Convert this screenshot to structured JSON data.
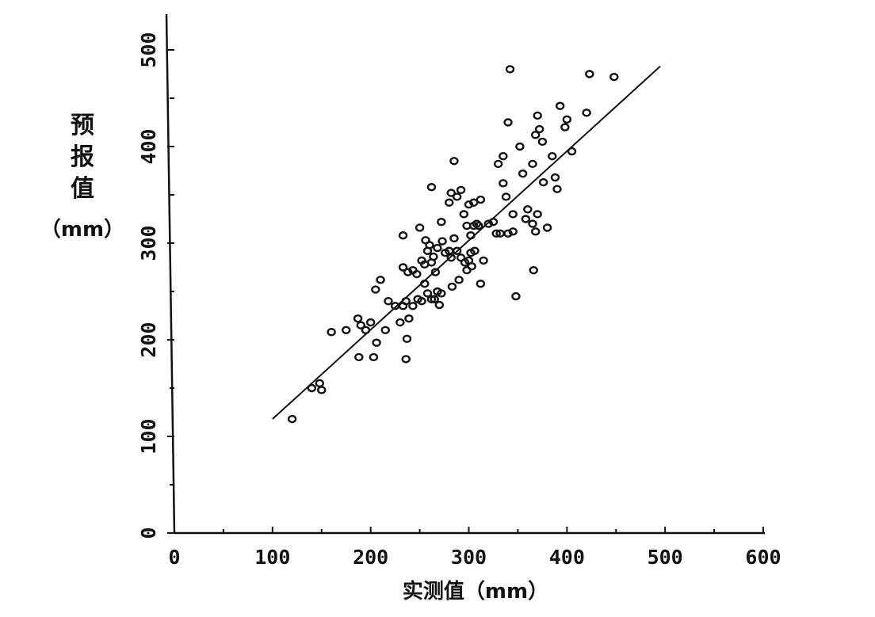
{
  "chart_data": {
    "type": "scatter",
    "xlabel": "实测值（mm）",
    "ylabel_chars": [
      "预",
      "报",
      "值"
    ],
    "ylabel_unit": "（mm）",
    "xlim": [
      0,
      600
    ],
    "ylim": [
      0,
      500
    ],
    "x_ticks": [
      0,
      100,
      200,
      300,
      400,
      500,
      600
    ],
    "x_tick_labels": [
      "0",
      "100",
      "200",
      "300",
      "400",
      "500",
      "600"
    ],
    "y_ticks": [
      0,
      100,
      200,
      300,
      400,
      500
    ],
    "y_tick_labels": [
      "0",
      "100",
      "200",
      "300",
      "400",
      "500"
    ],
    "grid": false,
    "fit_line": {
      "x": [
        100,
        495
      ],
      "y": [
        118,
        483
      ]
    },
    "points": [
      [
        120,
        118
      ],
      [
        140,
        150
      ],
      [
        148,
        155
      ],
      [
        150,
        148
      ],
      [
        160,
        208
      ],
      [
        175,
        210
      ],
      [
        187,
        222
      ],
      [
        190,
        215
      ],
      [
        195,
        210
      ],
      [
        200,
        218
      ],
      [
        188,
        182
      ],
      [
        203,
        182
      ],
      [
        206,
        197
      ],
      [
        210,
        262
      ],
      [
        205,
        252
      ],
      [
        215,
        210
      ],
      [
        218,
        240
      ],
      [
        225,
        235
      ],
      [
        230,
        218
      ],
      [
        233,
        235
      ],
      [
        236,
        240
      ],
      [
        237,
        201
      ],
      [
        236,
        180
      ],
      [
        239,
        222
      ],
      [
        243,
        235
      ],
      [
        248,
        242
      ],
      [
        233,
        308
      ],
      [
        233,
        275
      ],
      [
        238,
        270
      ],
      [
        243,
        272
      ],
      [
        247,
        268
      ],
      [
        250,
        316
      ],
      [
        252,
        282
      ],
      [
        255,
        278
      ],
      [
        258,
        292
      ],
      [
        256,
        303
      ],
      [
        260,
        298
      ],
      [
        262,
        280
      ],
      [
        264,
        286
      ],
      [
        266,
        270
      ],
      [
        252,
        240
      ],
      [
        255,
        258
      ],
      [
        258,
        248
      ],
      [
        262,
        242
      ],
      [
        265,
        242
      ],
      [
        268,
        250
      ],
      [
        270,
        236
      ],
      [
        272,
        248
      ],
      [
        268,
        295
      ],
      [
        273,
        302
      ],
      [
        276,
        290
      ],
      [
        280,
        292
      ],
      [
        282,
        285
      ],
      [
        285,
        305
      ],
      [
        288,
        292
      ],
      [
        262,
        358
      ],
      [
        272,
        322
      ],
      [
        280,
        342
      ],
      [
        282,
        352
      ],
      [
        285,
        385
      ],
      [
        288,
        348
      ],
      [
        292,
        355
      ],
      [
        295,
        330
      ],
      [
        283,
        255
      ],
      [
        290,
        262
      ],
      [
        292,
        285
      ],
      [
        296,
        280
      ],
      [
        298,
        272
      ],
      [
        300,
        282
      ],
      [
        303,
        276
      ],
      [
        298,
        318
      ],
      [
        302,
        308
      ],
      [
        305,
        318
      ],
      [
        308,
        320
      ],
      [
        310,
        318
      ],
      [
        312,
        345
      ],
      [
        300,
        340
      ],
      [
        305,
        342
      ],
      [
        302,
        290
      ],
      [
        306,
        292
      ],
      [
        315,
        282
      ],
      [
        312,
        258
      ],
      [
        320,
        320
      ],
      [
        325,
        322
      ],
      [
        328,
        310
      ],
      [
        332,
        310
      ],
      [
        335,
        362
      ],
      [
        338,
        348
      ],
      [
        340,
        310
      ],
      [
        345,
        312
      ],
      [
        330,
        382
      ],
      [
        335,
        390
      ],
      [
        340,
        425
      ],
      [
        342,
        480
      ],
      [
        345,
        330
      ],
      [
        348,
        245
      ],
      [
        352,
        400
      ],
      [
        355,
        372
      ],
      [
        358,
        325
      ],
      [
        360,
        335
      ],
      [
        365,
        320
      ],
      [
        368,
        312
      ],
      [
        370,
        330
      ],
      [
        366,
        272
      ],
      [
        365,
        382
      ],
      [
        368,
        412
      ],
      [
        372,
        418
      ],
      [
        370,
        432
      ],
      [
        375,
        405
      ],
      [
        376,
        363
      ],
      [
        380,
        316
      ],
      [
        385,
        390
      ],
      [
        388,
        368
      ],
      [
        390,
        356
      ],
      [
        393,
        442
      ],
      [
        398,
        420
      ],
      [
        400,
        428
      ],
      [
        405,
        395
      ],
      [
        420,
        435
      ],
      [
        423,
        475
      ],
      [
        448,
        472
      ]
    ]
  }
}
